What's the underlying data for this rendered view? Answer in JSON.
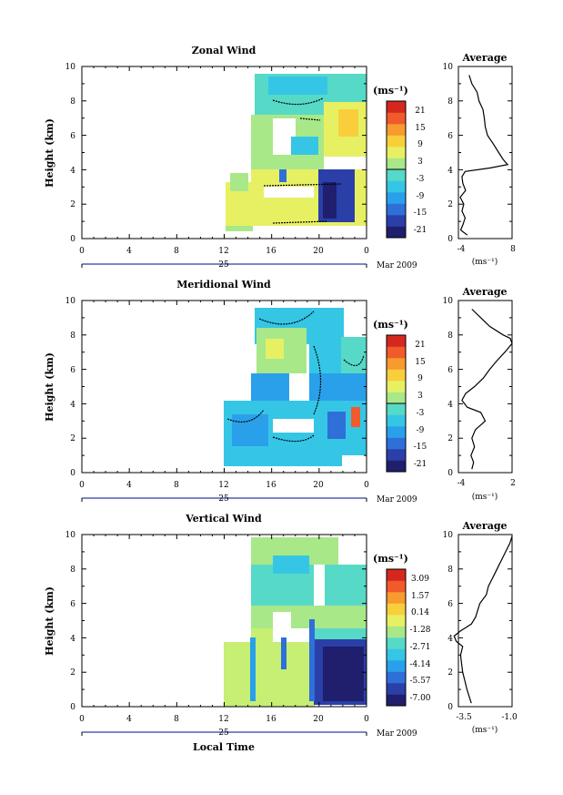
{
  "colors": {
    "palette": [
      "#1f1f6e",
      "#2b3fa8",
      "#2f6fd8",
      "#2aa0ea",
      "#35c6e6",
      "#57d9c8",
      "#a8e889",
      "#e7f063",
      "#f8cf3b",
      "#f79b2e",
      "#f15a2b",
      "#d6271f"
    ],
    "background": "#ffffff",
    "profile_line": "#000000"
  },
  "chart_data": [
    {
      "type": "heatmap",
      "title": "Zonal Wind",
      "ylabel": "Height (km)",
      "y_ticks": [
        "0",
        "2",
        "4",
        "6",
        "8",
        "10"
      ],
      "x_ticks": [
        "0",
        "4",
        "8",
        "12",
        "16",
        "20",
        "0"
      ],
      "date_label": "25",
      "month_label": "Mar 2009",
      "ylim": [
        0,
        10
      ],
      "xlim": [
        0,
        24
      ],
      "colorbar_unit": "(ms⁻¹)",
      "colorbar_ticks": [
        "21",
        "15",
        "9",
        "3",
        "-3",
        "-9",
        "-15",
        "-21"
      ],
      "data_coverage_hours": [
        12,
        24
      ],
      "data_top_km": 9.6,
      "profile": {
        "title": "Average",
        "xlabel": "(ms⁻¹)",
        "x_ticks": [
          "-4",
          "8"
        ],
        "xlim": [
          -4,
          8
        ],
        "heights": [
          0.2,
          0.5,
          0.8,
          1.2,
          1.6,
          2.0,
          2.4,
          2.8,
          3.2,
          3.6,
          3.9,
          4.1,
          4.3,
          4.6,
          5.0,
          5.5,
          6.0,
          6.5,
          7.0,
          7.5,
          8.0,
          8.5,
          9.0,
          9.5
        ],
        "values": [
          -2.0,
          -3.5,
          -3.0,
          -2.5,
          -3.2,
          -2.8,
          -3.6,
          -2.4,
          -3.0,
          -3.2,
          -2.5,
          3.0,
          7.0,
          6.0,
          5.0,
          3.8,
          2.5,
          2.0,
          1.8,
          1.5,
          0.6,
          0.2,
          -1.0,
          -1.6
        ]
      }
    },
    {
      "type": "heatmap",
      "title": "Meridional Wind",
      "ylabel": "Height (km)",
      "y_ticks": [
        "0",
        "2",
        "4",
        "6",
        "8",
        "10"
      ],
      "x_ticks": [
        "0",
        "4",
        "8",
        "12",
        "16",
        "20",
        "0"
      ],
      "date_label": "25",
      "month_label": "Mar 2009",
      "ylim": [
        0,
        10
      ],
      "xlim": [
        0,
        24
      ],
      "colorbar_unit": "(ms⁻¹)",
      "colorbar_ticks": [
        "21",
        "15",
        "9",
        "3",
        "-3",
        "-9",
        "-15",
        "-21"
      ],
      "data_coverage_hours": [
        12,
        24
      ],
      "data_top_km": 9.6,
      "profile": {
        "title": "Average",
        "xlabel": "(ms⁻¹)",
        "x_ticks": [
          "-4",
          "2"
        ],
        "xlim": [
          -4,
          2
        ],
        "heights": [
          0.2,
          0.6,
          1.0,
          1.5,
          2.0,
          2.5,
          3.0,
          3.5,
          3.8,
          4.2,
          4.6,
          5.0,
          5.5,
          6.0,
          6.5,
          7.0,
          7.5,
          7.8,
          8.0,
          8.5,
          9.0,
          9.5
        ],
        "values": [
          -2.5,
          -2.3,
          -2.6,
          -2.2,
          -2.5,
          -2.1,
          -1.0,
          -1.5,
          -3.0,
          -3.6,
          -3.2,
          -2.2,
          -1.2,
          -0.5,
          0.3,
          1.2,
          2.0,
          1.8,
          1.0,
          -0.5,
          -1.5,
          -2.5
        ]
      }
    },
    {
      "type": "heatmap",
      "title": "Vertical Wind",
      "ylabel": "Height (km)",
      "xlabel": "Local Time",
      "y_ticks": [
        "0",
        "2",
        "4",
        "6",
        "8",
        "10"
      ],
      "x_ticks": [
        "0",
        "4",
        "8",
        "12",
        "16",
        "20",
        "0"
      ],
      "date_label": "25",
      "month_label": "Mar 2009",
      "ylim": [
        0,
        10
      ],
      "xlim": [
        0,
        24
      ],
      "colorbar_unit": "(ms⁻¹)",
      "colorbar_ticks": [
        "3.09",
        "1.57",
        "0.14",
        "-1.28",
        "-2.71",
        "-4.14",
        "-5.57",
        "-7.00"
      ],
      "data_coverage_hours": [
        12,
        24
      ],
      "data_top_km": 10.0,
      "profile": {
        "title": "Average",
        "xlabel": "(ms⁻¹)",
        "x_ticks": [
          "-3.5",
          "-1.0"
        ],
        "xlim": [
          -3.5,
          -1.0
        ],
        "heights": [
          0.2,
          0.6,
          1.0,
          1.5,
          2.0,
          2.5,
          3.0,
          3.5,
          3.8,
          4.1,
          4.4,
          4.8,
          5.2,
          5.6,
          6.0,
          6.5,
          7.0,
          7.5,
          8.0,
          8.5,
          9.0,
          9.5,
          9.9
        ],
        "values": [
          -2.9,
          -3.0,
          -3.1,
          -3.2,
          -3.3,
          -3.35,
          -3.4,
          -3.3,
          -3.6,
          -3.7,
          -3.4,
          -2.9,
          -2.7,
          -2.6,
          -2.5,
          -2.2,
          -2.1,
          -1.9,
          -1.7,
          -1.5,
          -1.3,
          -1.1,
          -1.0
        ]
      }
    }
  ]
}
